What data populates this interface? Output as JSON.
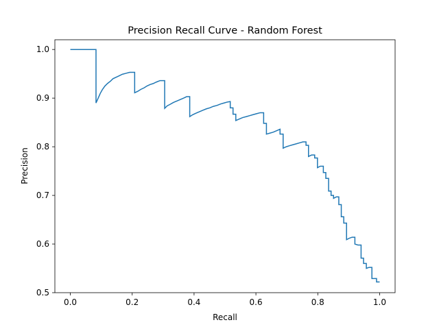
{
  "chart_data": {
    "type": "line",
    "step": "post",
    "title": "Precision Recall Curve - Random Forest",
    "xlabel": "Recall",
    "ylabel": "Precision",
    "xlim": [
      -0.05,
      1.05
    ],
    "ylim": [
      0.5,
      1.02
    ],
    "grid": false,
    "legend": "none",
    "xticks": [
      0.0,
      0.2,
      0.4,
      0.6,
      0.8,
      1.0
    ],
    "xtick_labels": [
      "0.0",
      "0.2",
      "0.4",
      "0.6",
      "0.8",
      "1.0"
    ],
    "yticks": [
      0.5,
      0.6,
      0.7,
      0.8,
      0.9,
      1.0
    ],
    "ytick_labels": [
      "0.5",
      "0.6",
      "0.7",
      "0.8",
      "0.9",
      "1.0"
    ],
    "series": [
      {
        "color": "#1f77b4",
        "points": [
          [
            0.0,
            1.0
          ],
          [
            0.083,
            1.0
          ],
          [
            0.083,
            0.89
          ],
          [
            0.09,
            0.9
          ],
          [
            0.097,
            0.91
          ],
          [
            0.104,
            0.918
          ],
          [
            0.112,
            0.925
          ],
          [
            0.12,
            0.93
          ],
          [
            0.13,
            0.935
          ],
          [
            0.138,
            0.94
          ],
          [
            0.148,
            0.943
          ],
          [
            0.158,
            0.946
          ],
          [
            0.168,
            0.949
          ],
          [
            0.18,
            0.951
          ],
          [
            0.192,
            0.953
          ],
          [
            0.208,
            0.953
          ],
          [
            0.208,
            0.911
          ],
          [
            0.218,
            0.914
          ],
          [
            0.228,
            0.918
          ],
          [
            0.238,
            0.921
          ],
          [
            0.248,
            0.925
          ],
          [
            0.258,
            0.928
          ],
          [
            0.268,
            0.93
          ],
          [
            0.278,
            0.933
          ],
          [
            0.29,
            0.936
          ],
          [
            0.305,
            0.936
          ],
          [
            0.305,
            0.879
          ],
          [
            0.313,
            0.884
          ],
          [
            0.322,
            0.887
          ],
          [
            0.333,
            0.891
          ],
          [
            0.344,
            0.894
          ],
          [
            0.355,
            0.897
          ],
          [
            0.366,
            0.9
          ],
          [
            0.376,
            0.903
          ],
          [
            0.386,
            0.903
          ],
          [
            0.386,
            0.862
          ],
          [
            0.396,
            0.866
          ],
          [
            0.406,
            0.869
          ],
          [
            0.417,
            0.872
          ],
          [
            0.428,
            0.875
          ],
          [
            0.44,
            0.878
          ],
          [
            0.451,
            0.88
          ],
          [
            0.462,
            0.883
          ],
          [
            0.474,
            0.885
          ],
          [
            0.486,
            0.888
          ],
          [
            0.497,
            0.89
          ],
          [
            0.508,
            0.892
          ],
          [
            0.517,
            0.893
          ],
          [
            0.517,
            0.88
          ],
          [
            0.526,
            0.88
          ],
          [
            0.526,
            0.867
          ],
          [
            0.535,
            0.867
          ],
          [
            0.535,
            0.854
          ],
          [
            0.546,
            0.857
          ],
          [
            0.557,
            0.86
          ],
          [
            0.569,
            0.862
          ],
          [
            0.58,
            0.864
          ],
          [
            0.591,
            0.866
          ],
          [
            0.602,
            0.868
          ],
          [
            0.614,
            0.87
          ],
          [
            0.625,
            0.87
          ],
          [
            0.625,
            0.848
          ],
          [
            0.634,
            0.848
          ],
          [
            0.634,
            0.826
          ],
          [
            0.645,
            0.828
          ],
          [
            0.656,
            0.83
          ],
          [
            0.667,
            0.833
          ],
          [
            0.678,
            0.836
          ],
          [
            0.678,
            0.826
          ],
          [
            0.688,
            0.826
          ],
          [
            0.688,
            0.797
          ],
          [
            0.698,
            0.8
          ],
          [
            0.708,
            0.802
          ],
          [
            0.719,
            0.804
          ],
          [
            0.73,
            0.806
          ],
          [
            0.741,
            0.808
          ],
          [
            0.752,
            0.81
          ],
          [
            0.762,
            0.81
          ],
          [
            0.762,
            0.803
          ],
          [
            0.77,
            0.803
          ],
          [
            0.77,
            0.78
          ],
          [
            0.78,
            0.783
          ],
          [
            0.79,
            0.783
          ],
          [
            0.79,
            0.777
          ],
          [
            0.799,
            0.777
          ],
          [
            0.799,
            0.757
          ],
          [
            0.808,
            0.76
          ],
          [
            0.818,
            0.76
          ],
          [
            0.818,
            0.747
          ],
          [
            0.826,
            0.747
          ],
          [
            0.826,
            0.735
          ],
          [
            0.835,
            0.735
          ],
          [
            0.835,
            0.709
          ],
          [
            0.843,
            0.709
          ],
          [
            0.843,
            0.7
          ],
          [
            0.851,
            0.7
          ],
          [
            0.851,
            0.694
          ],
          [
            0.86,
            0.697
          ],
          [
            0.868,
            0.697
          ],
          [
            0.868,
            0.681
          ],
          [
            0.876,
            0.681
          ],
          [
            0.876,
            0.656
          ],
          [
            0.884,
            0.656
          ],
          [
            0.884,
            0.643
          ],
          [
            0.893,
            0.643
          ],
          [
            0.893,
            0.609
          ],
          [
            0.902,
            0.612
          ],
          [
            0.911,
            0.614
          ],
          [
            0.92,
            0.614
          ],
          [
            0.92,
            0.6
          ],
          [
            0.93,
            0.598
          ],
          [
            0.94,
            0.598
          ],
          [
            0.94,
            0.571
          ],
          [
            0.948,
            0.571
          ],
          [
            0.948,
            0.56
          ],
          [
            0.957,
            0.56
          ],
          [
            0.957,
            0.55
          ],
          [
            0.966,
            0.552
          ],
          [
            0.975,
            0.552
          ],
          [
            0.975,
            0.529
          ],
          [
            0.99,
            0.529
          ],
          [
            0.99,
            0.522
          ],
          [
            1.0,
            0.522
          ]
        ]
      }
    ]
  }
}
